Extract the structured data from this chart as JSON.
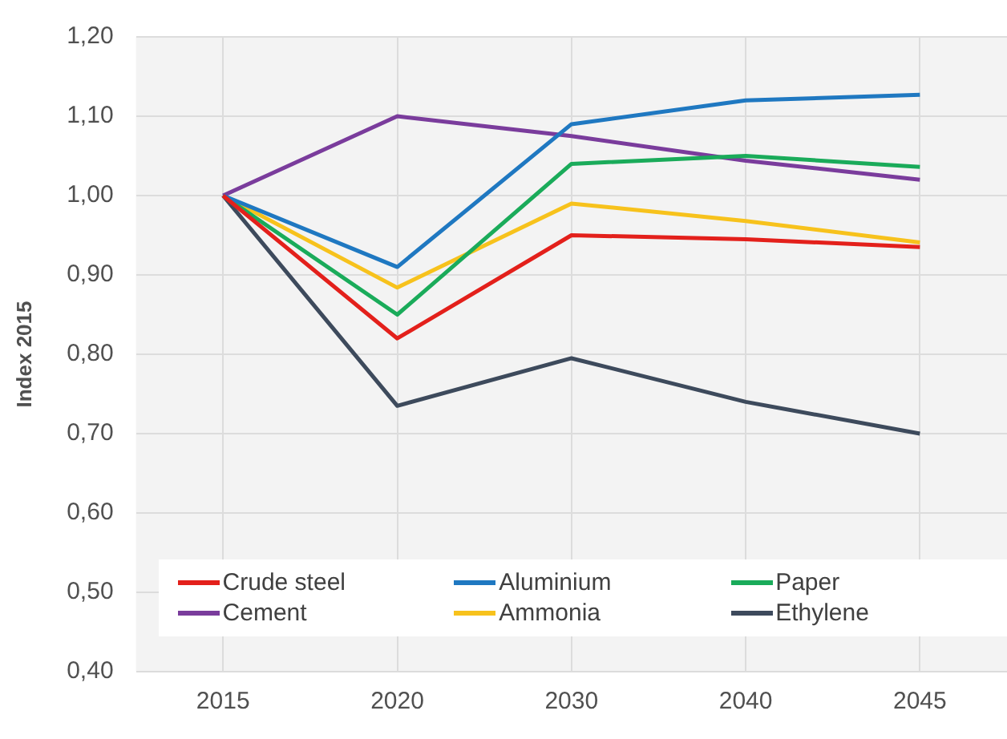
{
  "chart_data": {
    "type": "line",
    "ylabel": "Index 2015",
    "categories": [
      "2015",
      "2020",
      "2030",
      "2040",
      "2045"
    ],
    "series": [
      {
        "name": "Crude steel",
        "color": "#e3201b",
        "values": [
          1.0,
          0.82,
          0.95,
          0.945,
          0.935
        ]
      },
      {
        "name": "Aluminium",
        "color": "#1f78c1",
        "values": [
          1.0,
          0.91,
          1.09,
          1.12,
          1.127
        ]
      },
      {
        "name": "Paper",
        "color": "#1aab5a",
        "values": [
          1.0,
          0.85,
          1.04,
          1.05,
          1.036
        ]
      },
      {
        "name": "Cement",
        "color": "#7a3c9c",
        "values": [
          1.0,
          1.1,
          1.075,
          1.044,
          1.02
        ]
      },
      {
        "name": "Ammonia",
        "color": "#f7c21c",
        "values": [
          1.0,
          0.884,
          0.99,
          0.968,
          0.941
        ]
      },
      {
        "name": "Ethylene",
        "color": "#3d4a5c",
        "values": [
          1.0,
          0.735,
          0.795,
          0.74,
          0.7
        ]
      }
    ],
    "ylim": [
      0.4,
      1.2
    ],
    "yticks": [
      {
        "value": 0.4,
        "label": "0,40"
      },
      {
        "value": 0.5,
        "label": "0,50"
      },
      {
        "value": 0.6,
        "label": "0,60"
      },
      {
        "value": 0.7,
        "label": "0,70"
      },
      {
        "value": 0.8,
        "label": "0,80"
      },
      {
        "value": 0.9,
        "label": "0,90"
      },
      {
        "value": 1.0,
        "label": "1,00"
      },
      {
        "value": 1.1,
        "label": "1,10"
      },
      {
        "value": 1.2,
        "label": "1,20"
      }
    ],
    "grid": true,
    "legend": "bottom",
    "marker": "none",
    "line_style": "solid"
  }
}
